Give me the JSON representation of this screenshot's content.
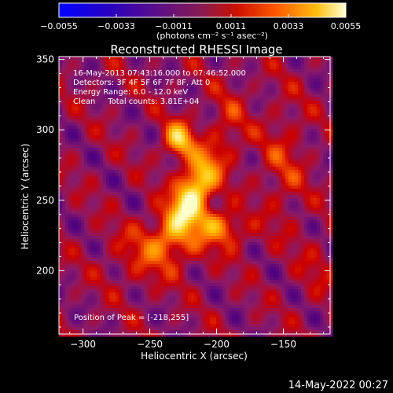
{
  "chart_data": {
    "type": "heatmap",
    "title": "Reconstructed RHESSI Image",
    "xlabel": "Heliocentric X (arcsec)",
    "ylabel": "Heliocentric Y (arcsec)",
    "xlim": [
      -318,
      -115
    ],
    "ylim": [
      155,
      352
    ],
    "x_ticks": [
      -300,
      -250,
      -200,
      -150
    ],
    "y_ticks": [
      200,
      250,
      300,
      350
    ],
    "colorbar": {
      "range": [
        -0.0055,
        0.0055
      ],
      "ticks": [
        -0.0055,
        -0.0033,
        -0.0011,
        0.0011,
        0.0033,
        0.0055
      ],
      "tick_labels": [
        "−0.0055",
        "−0.0033",
        "−0.0011",
        "0.0011",
        "0.0033",
        "0.0055"
      ],
      "unit_label": "(photons cm⁻² s⁻¹ asec⁻²)",
      "colormap": [
        "#0000ff",
        "#4b0082",
        "#8a1a6a",
        "#cc0000",
        "#ff6a00",
        "#ffc400",
        "#ffffcc"
      ]
    },
    "annotations": [
      "16-May-2013 07:43:16.000 to 07:46:52.000",
      "Detectors: 3F 4F 5F 6F 7F 8F, Att 0",
      "Energy Range: 6.0 - 12.0 keV",
      "Clean     Total counts: 3.81E+04"
    ],
    "peak_label": "Position of Peak = [-218,255]",
    "peak": [
      -218,
      255
    ],
    "sources": [
      {
        "x": -218,
        "y": 255,
        "amp": 1.0,
        "sx": 9,
        "sy": 22,
        "angle": -28
      },
      {
        "x": -228,
        "y": 293,
        "amp": 0.75,
        "sx": 8,
        "sy": 9,
        "angle": 0
      },
      {
        "x": -198,
        "y": 232,
        "amp": 0.55,
        "sx": 14,
        "sy": 8,
        "angle": -20
      },
      {
        "x": -233,
        "y": 222,
        "amp": 0.35,
        "sx": 22,
        "sy": 12,
        "angle": 0
      },
      {
        "x": -150,
        "y": 275,
        "amp": 0.25,
        "sx": 12,
        "sy": 30,
        "angle": 0
      },
      {
        "x": -190,
        "y": 305,
        "amp": 0.2,
        "sx": 10,
        "sy": 20,
        "angle": 0
      },
      {
        "x": -255,
        "y": 205,
        "amp": 0.18,
        "sx": 20,
        "sy": 14,
        "angle": 0
      },
      {
        "x": -125,
        "y": 200,
        "amp": 0.15,
        "sx": 10,
        "sy": 16,
        "angle": 0
      }
    ]
  },
  "footer": {
    "timestamp": "14-May-2022 00:27"
  }
}
